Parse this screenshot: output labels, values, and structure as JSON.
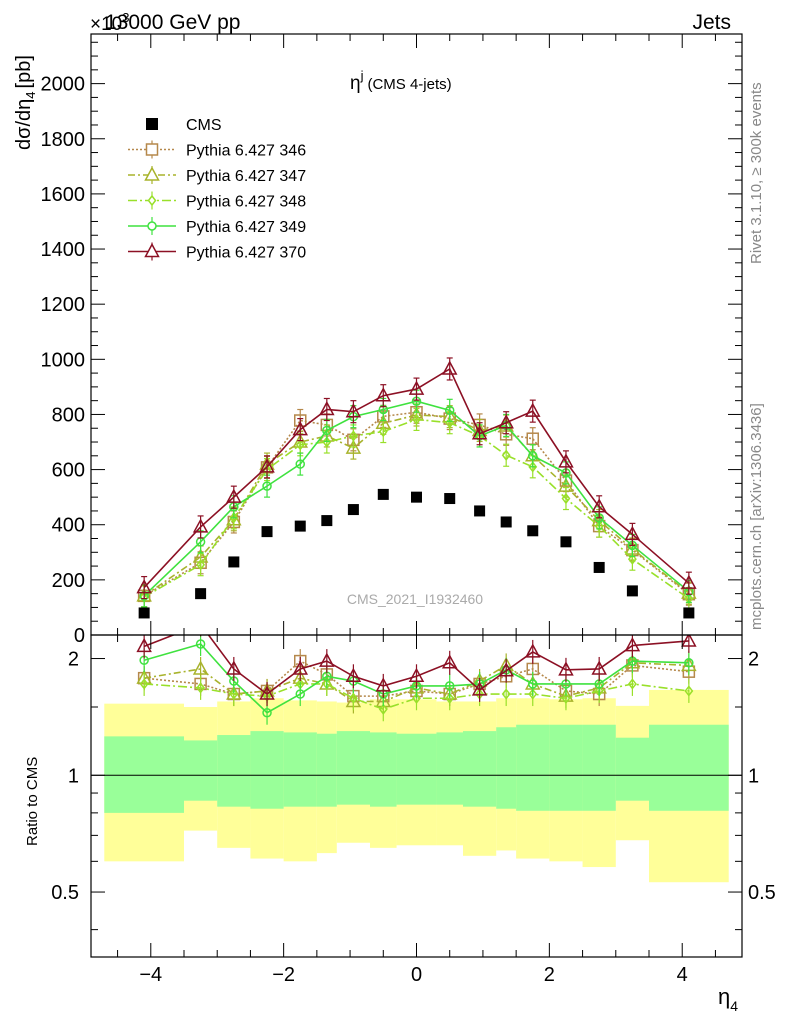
{
  "header": {
    "left_title": "13000 GeV pp",
    "right_title": "Jets",
    "exponent_label": "×10",
    "exponent_power": "3"
  },
  "side_text": {
    "rivet": "Rivet 3.1.10, ≥ 300k events",
    "mcplots": "mcplots.cern.ch [arXiv:1306.3436]"
  },
  "chart_data": {
    "type": "line",
    "title": "η",
    "title_sup": "j",
    "title_suffix": "(CMS 4-jets)",
    "watermark": "CMS_2021_I1932460",
    "xlabel": "η",
    "xlabel_sub": "4",
    "ylabel": "dσ/dη",
    "ylabel_sub": "4",
    "ylabel_tail": "[pb]",
    "ratio_ylabel": "Ratio to CMS",
    "xlim": [
      -4.9,
      4.9
    ],
    "ylim": [
      0,
      2180
    ],
    "ratio_ylim": [
      0.34,
      2.3
    ],
    "x_ticks": [
      -4,
      -2,
      0,
      2,
      4
    ],
    "x_tick_labels": [
      "−4",
      "−2",
      "0",
      "2",
      "4"
    ],
    "y_ticks": [
      0,
      200,
      400,
      600,
      800,
      1000,
      1200,
      1400,
      1600,
      1800,
      2000
    ],
    "y_tick_labels": [
      "0",
      "200",
      "400",
      "600",
      "800",
      "1000",
      "1200",
      "1400",
      "1600",
      "1800",
      "2000"
    ],
    "ratio_ticks": [
      0.5,
      1,
      2
    ],
    "ratio_tick_labels": [
      "0.5",
      "1",
      "2"
    ],
    "bin_edges": [
      -4.7,
      -3.5,
      -3.0,
      -2.5,
      -2.0,
      -1.5,
      -1.2,
      -0.7,
      -0.3,
      0.3,
      0.7,
      1.2,
      1.5,
      2.0,
      2.5,
      3.0,
      3.5,
      4.7
    ],
    "x": [
      -4.1,
      -3.25,
      -2.75,
      -2.25,
      -1.75,
      -1.35,
      -0.95,
      -0.5,
      0.0,
      0.5,
      0.95,
      1.35,
      1.75,
      2.25,
      2.75,
      3.25,
      4.1
    ],
    "data": {
      "name": "CMS",
      "values": [
        80,
        150,
        265,
        375,
        395,
        415,
        455,
        510,
        500,
        495,
        450,
        410,
        378,
        338,
        245,
        160,
        80
      ]
    },
    "series": [
      {
        "name": "Pythia 6.427 346",
        "color": "#b5884b",
        "marker": "square",
        "dash": "2,2",
        "values": [
          142,
          262,
          410,
          608,
          778,
          762,
          708,
          793,
          808,
          785,
          762,
          728,
          712,
          560,
          395,
          308,
          148
        ]
      },
      {
        "name": "Pythia 6.427 347",
        "color": "#a8b32c",
        "marker": "triangle",
        "dash": "7,3,2,3",
        "values": [
          142,
          283,
          418,
          620,
          700,
          722,
          678,
          768,
          798,
          792,
          742,
          758,
          650,
          540,
          415,
          312,
          152
        ]
      },
      {
        "name": "Pythia 6.427 348",
        "color": "#99e02a",
        "marker": "diamond",
        "dash": "9,3,2,3",
        "values": [
          138,
          255,
          425,
          600,
          690,
          700,
          722,
          738,
          782,
          770,
          722,
          652,
          610,
          495,
          395,
          275,
          132
        ]
      },
      {
        "name": "Pythia 6.427 349",
        "color": "#3fe23f",
        "marker": "circle",
        "dash": "",
        "values": [
          142,
          338,
          465,
          540,
          620,
          742,
          792,
          818,
          848,
          815,
          722,
          760,
          650,
          588,
          425,
          325,
          158
        ]
      },
      {
        "name": "Pythia 6.427 370",
        "color": "#8c1024",
        "marker": "triangle",
        "dash": "",
        "values": [
          172,
          392,
          500,
          610,
          745,
          818,
          810,
          868,
          892,
          965,
          730,
          770,
          812,
          628,
          465,
          365,
          188
        ]
      }
    ],
    "ratio_series": [
      [
        1.78,
        1.72,
        1.62,
        1.65,
        1.97,
        1.82,
        1.6,
        1.6,
        1.65,
        1.62,
        1.72,
        1.8,
        1.88,
        1.65,
        1.62,
        1.92,
        1.85
      ],
      [
        1.78,
        1.88,
        1.62,
        1.65,
        1.78,
        1.72,
        1.55,
        1.55,
        1.68,
        1.62,
        1.75,
        1.92,
        1.72,
        1.6,
        1.68,
        1.95,
        1.92
      ],
      [
        1.72,
        1.68,
        1.62,
        1.6,
        1.72,
        1.72,
        1.58,
        1.48,
        1.58,
        1.58,
        1.62,
        1.62,
        1.62,
        1.58,
        1.65,
        1.72,
        1.65
      ],
      [
        1.98,
        2.18,
        1.75,
        1.45,
        1.62,
        1.8,
        1.75,
        1.62,
        1.7,
        1.7,
        1.72,
        1.87,
        1.72,
        1.72,
        1.72,
        1.97,
        1.95
      ],
      [
        2.15,
        2.45,
        1.88,
        1.62,
        1.88,
        1.97,
        1.8,
        1.7,
        1.8,
        1.95,
        1.66,
        1.86,
        2.08,
        1.87,
        1.88,
        2.16,
        2.22
      ]
    ],
    "band_outer": [
      [
        0.6,
        1.53
      ],
      [
        0.72,
        1.5
      ],
      [
        0.65,
        1.55
      ],
      [
        0.61,
        1.58
      ],
      [
        0.6,
        1.56
      ],
      [
        0.63,
        1.55
      ],
      [
        0.67,
        1.54
      ],
      [
        0.65,
        1.57
      ],
      [
        0.66,
        1.57
      ],
      [
        0.66,
        1.55
      ],
      [
        0.62,
        1.55
      ],
      [
        0.64,
        1.58
      ],
      [
        0.61,
        1.58
      ],
      [
        0.6,
        1.57
      ],
      [
        0.58,
        1.58
      ],
      [
        0.68,
        1.51
      ],
      [
        0.53,
        1.66
      ]
    ],
    "band_inner": [
      [
        0.8,
        1.26
      ],
      [
        0.86,
        1.23
      ],
      [
        0.83,
        1.27
      ],
      [
        0.82,
        1.3
      ],
      [
        0.83,
        1.29
      ],
      [
        0.83,
        1.28
      ],
      [
        0.84,
        1.3
      ],
      [
        0.83,
        1.29
      ],
      [
        0.84,
        1.28
      ],
      [
        0.84,
        1.29
      ],
      [
        0.83,
        1.3
      ],
      [
        0.82,
        1.33
      ],
      [
        0.81,
        1.35
      ],
      [
        0.81,
        1.35
      ],
      [
        0.81,
        1.35
      ],
      [
        0.86,
        1.25
      ],
      [
        0.81,
        1.35
      ]
    ],
    "grid": false,
    "legend_position": "top-left"
  }
}
